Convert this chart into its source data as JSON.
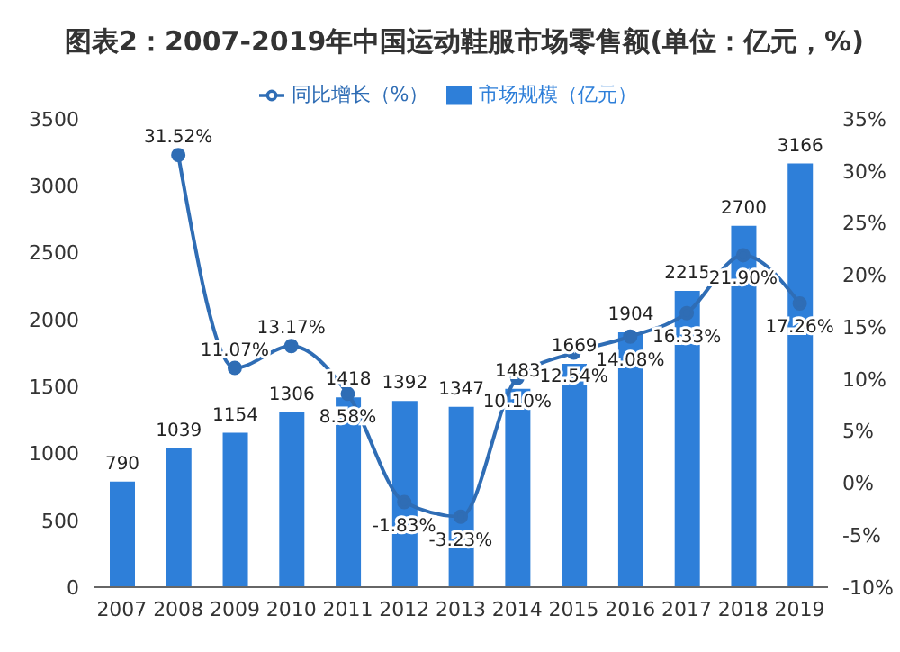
{
  "chart_data": {
    "type": "bar",
    "title": "图表2：2007-2019年中国运动鞋服市场零售额(单位：亿元，%)",
    "categories": [
      "2007",
      "2008",
      "2009",
      "2010",
      "2011",
      "2012",
      "2013",
      "2014",
      "2015",
      "2016",
      "2017",
      "2018",
      "2019"
    ],
    "series": [
      {
        "name": "市场规模（亿元）",
        "color": "#2e7fd9",
        "values": [
          790,
          1039,
          1154,
          1306,
          1418,
          1392,
          1347,
          1483,
          1669,
          1904,
          2215,
          2700,
          3166
        ],
        "value_labels": [
          "790",
          "1039",
          "1154",
          "1306",
          "1418",
          "1392",
          "1347",
          "1483",
          "1669",
          "1904",
          "2215",
          "2700",
          "3166"
        ]
      },
      {
        "name": "同比增长（%）",
        "type": "line",
        "axis": "y2",
        "color": "#2f6db5",
        "marker": "circle",
        "values": [
          null,
          31.52,
          11.07,
          13.17,
          8.58,
          -1.83,
          -3.23,
          10.1,
          12.54,
          14.08,
          16.33,
          21.9,
          17.26
        ],
        "value_labels": [
          null,
          "31.52%",
          "11.07%",
          "13.17%",
          "8.58%",
          "-1.83%",
          "-3.23%",
          "10.10%",
          "12.54%",
          "14.08%",
          "16.33%",
          "21.90%",
          "17.26%"
        ]
      }
    ],
    "ylim": [
      0,
      3500
    ],
    "yticks": [
      0,
      500,
      1000,
      1500,
      2000,
      2500,
      3000,
      3500
    ],
    "y2lim": [
      -10,
      35
    ],
    "y2ticks": [
      {
        "value": -10,
        "label": "-10%"
      },
      {
        "value": -5,
        "label": "-5%"
      },
      {
        "value": 0,
        "label": "0%"
      },
      {
        "value": 5,
        "label": "5%"
      },
      {
        "value": 10,
        "label": "10%"
      },
      {
        "value": 15,
        "label": "15%"
      },
      {
        "value": 20,
        "label": "20%"
      },
      {
        "value": 25,
        "label": "25%"
      },
      {
        "value": 30,
        "label": "30%"
      },
      {
        "value": 35,
        "label": "35%"
      }
    ],
    "grid": false,
    "legend": "top"
  }
}
